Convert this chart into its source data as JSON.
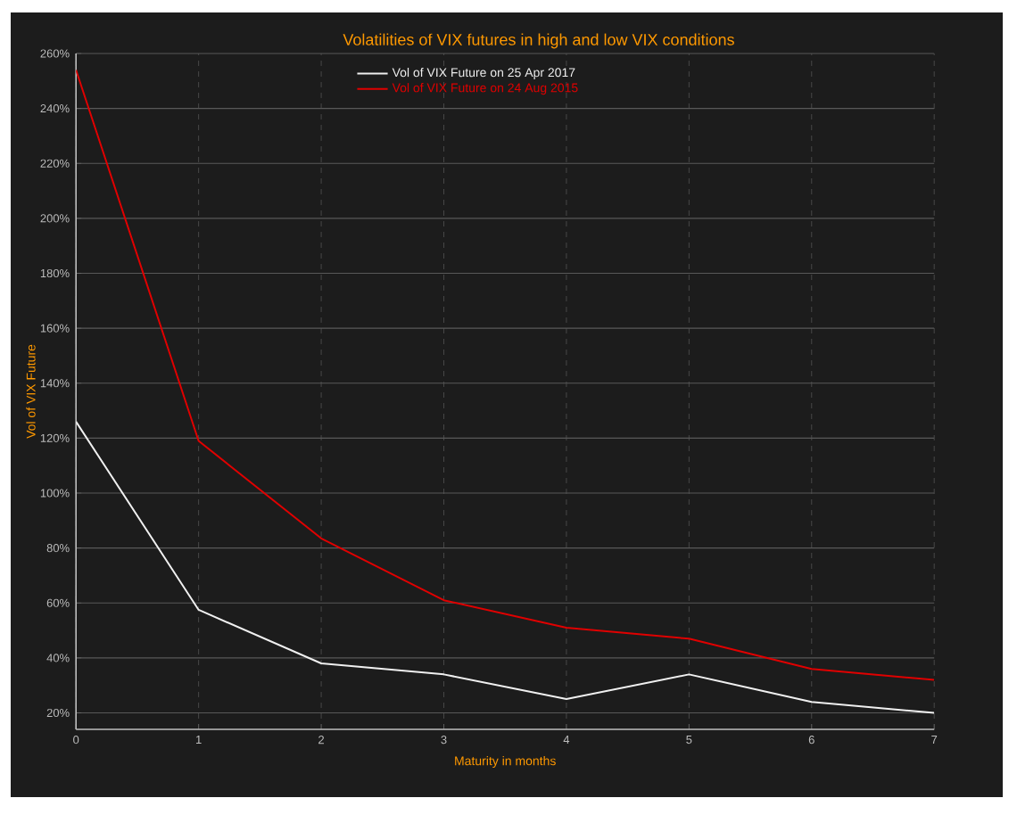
{
  "chart_data": {
    "type": "line",
    "title": "Volatilities of VIX futures in high and low VIX conditions",
    "xlabel": "Maturity in months",
    "ylabel": "Vol of VIX Future",
    "x": [
      0,
      1,
      2,
      3,
      4,
      5,
      6,
      7
    ],
    "series": [
      {
        "name": "Vol of VIX Future on 25 Apr 2017",
        "color": "#f0f0f0",
        "values": [
          126,
          57.5,
          38,
          34,
          25,
          34,
          24,
          20
        ]
      },
      {
        "name": "Vol of VIX Future on 24 Aug 2015",
        "color": "#e00000",
        "values": [
          254,
          119,
          83.5,
          61,
          51,
          47,
          36,
          32
        ]
      }
    ],
    "xlim": [
      0,
      7
    ],
    "xticks": [
      0,
      1,
      2,
      3,
      4,
      5,
      6,
      7
    ],
    "ylim": [
      14,
      260
    ],
    "yticks": [
      {
        "value": 20,
        "label": "20%"
      },
      {
        "value": 40,
        "label": "40%"
      },
      {
        "value": 60,
        "label": "60%"
      },
      {
        "value": 80,
        "label": "80%"
      },
      {
        "value": 100,
        "label": "100%"
      },
      {
        "value": 120,
        "label": "120%"
      },
      {
        "value": 140,
        "label": "140%"
      },
      {
        "value": 160,
        "label": "160%"
      },
      {
        "value": 180,
        "label": "180%"
      },
      {
        "value": 200,
        "label": "200%"
      },
      {
        "value": 220,
        "label": "220%"
      },
      {
        "value": 240,
        "label": "240%"
      },
      {
        "value": 260,
        "label": "260%"
      }
    ],
    "grid": true,
    "legend": "top",
    "marker": "none",
    "line_style": "solid"
  }
}
